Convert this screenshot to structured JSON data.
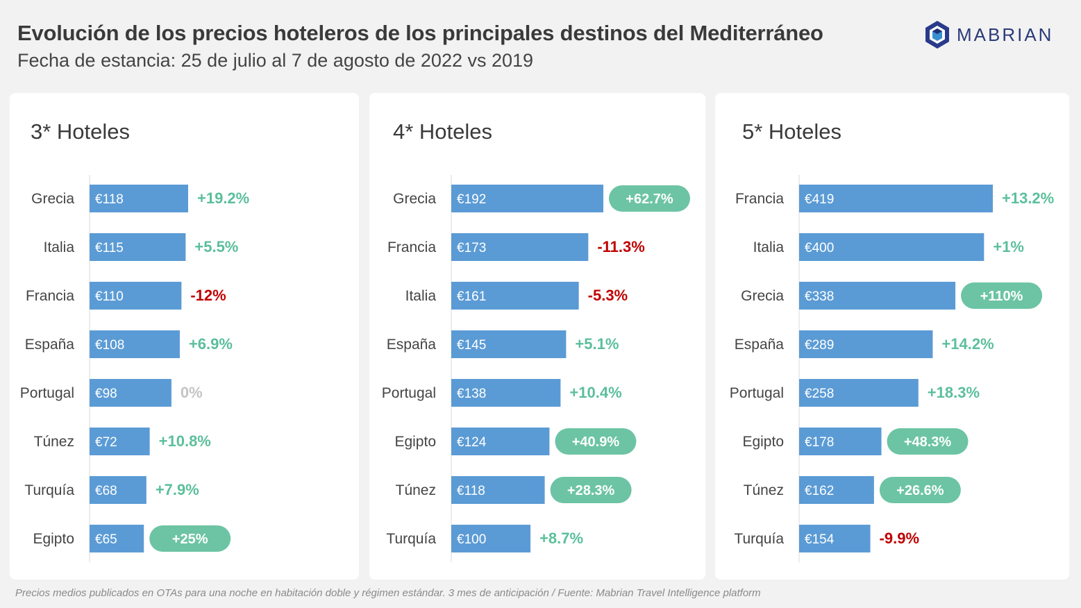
{
  "header": {
    "title": "Evolución de los precios hoteleros de los principales destinos del Mediterráneo",
    "subtitle": "Fecha de estancia: 25 de julio al 7 de agosto de 2022 vs 2019"
  },
  "logo": {
    "text": "MABRIAN",
    "icon": "mabrian-hexagon-logo"
  },
  "colors": {
    "bar": "#5b9bd5",
    "positive": "#5bbf9b",
    "negative": "#c00000",
    "neutral": "#c4c4c4",
    "pill": "#6cc4a4"
  },
  "chart_data": [
    {
      "type": "bar",
      "orientation": "horizontal",
      "title": "3* Hoteles",
      "categories": [
        "Grecia",
        "Italia",
        "Francia",
        "España",
        "Portugal",
        "Túnez",
        "Turquía",
        "Egipto"
      ],
      "values": [
        118,
        115,
        110,
        108,
        98,
        72,
        68,
        65
      ],
      "value_labels": [
        "€118",
        "€115",
        "€110",
        "€108",
        "€98",
        "€72",
        "€68",
        "€65"
      ],
      "change_labels": [
        "+19.2%",
        "+5.5%",
        "-12%",
        "+6.9%",
        "0%",
        "+10.8%",
        "+7.9%",
        "+25%"
      ],
      "change": [
        19.2,
        5.5,
        -12,
        6.9,
        0,
        10.8,
        7.9,
        25
      ],
      "highlight": [
        false,
        false,
        false,
        false,
        false,
        false,
        false,
        true
      ]
    },
    {
      "type": "bar",
      "orientation": "horizontal",
      "title": "4* Hoteles",
      "categories": [
        "Grecia",
        "Francia",
        "Italia",
        "España",
        "Portugal",
        "Egipto",
        "Túnez",
        "Turquía"
      ],
      "values": [
        192,
        173,
        161,
        145,
        138,
        124,
        118,
        100
      ],
      "value_labels": [
        "€192",
        "€173",
        "€161",
        "€145",
        "€138",
        "€124",
        "€118",
        "€100"
      ],
      "change_labels": [
        "+62.7%",
        "-11.3%",
        "-5.3%",
        "+5.1%",
        "+10.4%",
        "+40.9%",
        "+28.3%",
        "+8.7%"
      ],
      "change": [
        62.7,
        -11.3,
        -5.3,
        5.1,
        10.4,
        40.9,
        28.3,
        8.7
      ],
      "highlight": [
        true,
        false,
        false,
        false,
        false,
        true,
        true,
        false
      ]
    },
    {
      "type": "bar",
      "orientation": "horizontal",
      "title": "5* Hoteles",
      "categories": [
        "Francia",
        "Italia",
        "Grecia",
        "España",
        "Portugal",
        "Egipto",
        "Túnez",
        "Turquía"
      ],
      "values": [
        419,
        400,
        338,
        289,
        258,
        178,
        162,
        154
      ],
      "value_labels": [
        "€419",
        "€400",
        "€338",
        "€289",
        "€258",
        "€178",
        "€162",
        "€154"
      ],
      "change_labels": [
        "+13.2%",
        "+1%",
        "+110%",
        "+14.2%",
        "+18.3%",
        "+48.3%",
        "+26.6%",
        "-9.9%"
      ],
      "change": [
        13.2,
        1,
        110,
        14.2,
        18.3,
        48.3,
        26.6,
        -9.9
      ],
      "highlight": [
        false,
        false,
        true,
        false,
        false,
        true,
        true,
        false
      ]
    }
  ],
  "footnote": "Precios medios publicados en OTAs para una noche en habitación doble y régimen estándar. 3 mes de anticipación / Fuente: Mabrian Travel Intelligence platform"
}
